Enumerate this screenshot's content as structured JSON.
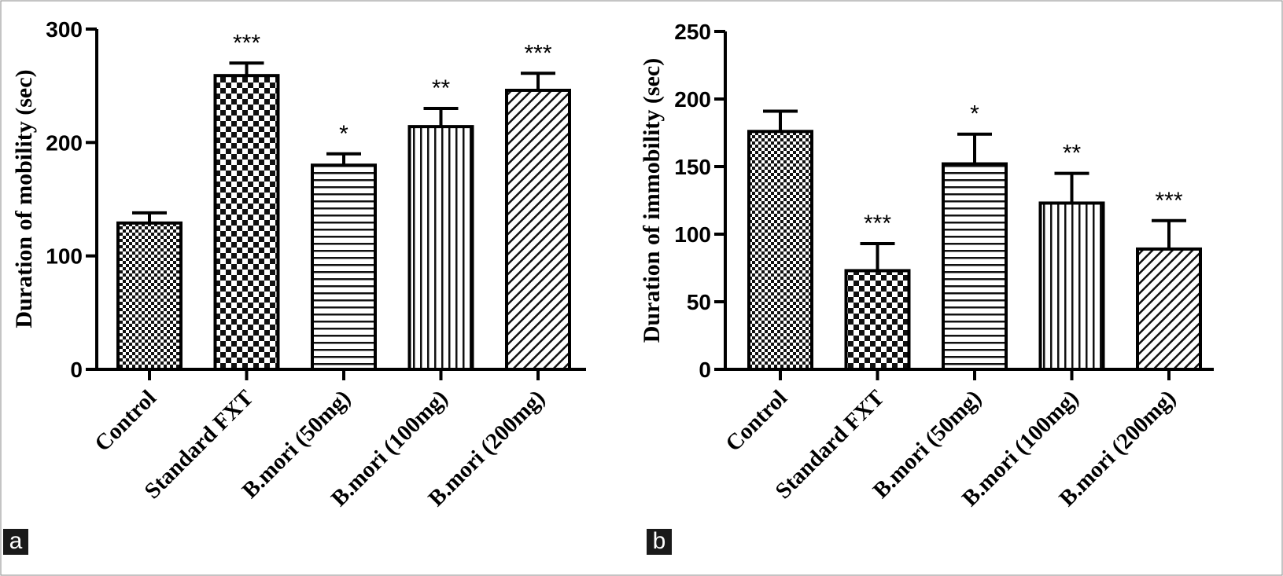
{
  "chart_data": [
    {
      "type": "bar",
      "panel_label": "a",
      "ylabel": "Duration of mobility (sec)",
      "xlabel": "",
      "ylim": [
        0,
        300
      ],
      "yticks": [
        0,
        100,
        200,
        300
      ],
      "categories": [
        "Control",
        "Standard FXT",
        "B.mori (50mg)",
        "B.mori (100mg)",
        "B.mori (200mg)"
      ],
      "values": [
        129,
        259,
        180,
        214,
        246
      ],
      "errors": [
        9,
        11,
        10,
        16,
        15
      ],
      "significance": [
        "",
        "***",
        "*",
        "**",
        "***"
      ],
      "patterns": [
        "small-check",
        "large-check",
        "horizontal-lines",
        "vertical-lines",
        "diagonal-lines"
      ]
    },
    {
      "type": "bar",
      "panel_label": "b",
      "ylabel": "Duration of immobility (sec)",
      "xlabel": "",
      "ylim": [
        0,
        250
      ],
      "yticks": [
        0,
        50,
        100,
        150,
        200,
        250
      ],
      "categories": [
        "Control",
        "Standard FXT",
        "B.mori (50mg)",
        "B.mori (100mg)",
        "B.mori (200mg)"
      ],
      "values": [
        176,
        73,
        152,
        123,
        89
      ],
      "errors": [
        15,
        20,
        22,
        22,
        21
      ],
      "significance": [
        "",
        "***",
        "*",
        "**",
        "***"
      ],
      "patterns": [
        "small-check",
        "large-check",
        "horizontal-lines",
        "vertical-lines",
        "diagonal-lines"
      ]
    }
  ]
}
